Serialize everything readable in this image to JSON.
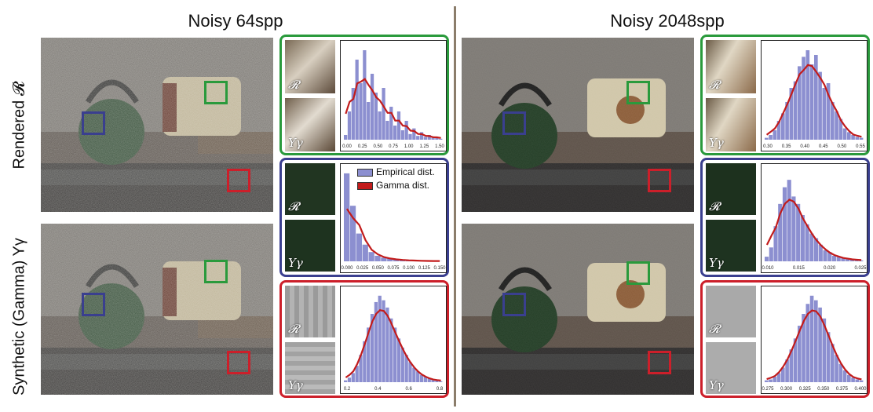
{
  "columns": [
    {
      "title": "Noisy 64spp"
    },
    {
      "title": "Noisy 2048spp"
    }
  ],
  "rows": [
    {
      "label": "Rendered 𝓡"
    },
    {
      "label": "Synthetic (Gamma) Yγ"
    }
  ],
  "symbols": {
    "rendered": "𝓡",
    "synthetic": "Yγ"
  },
  "legend": {
    "empirical": "Empirical dist.",
    "gamma": "Gamma dist."
  },
  "colors": {
    "green": "#2a9a3c",
    "blue": "#3a3f8f",
    "red": "#cc1f2a",
    "bar": "#8c8fd0",
    "curve": "#c21b1b"
  },
  "charts": [
    {
      "id": "c64-green",
      "ticks": [
        "0.00",
        "0.25",
        "0.50",
        "0.75",
        "1.00",
        "1.25",
        "1.50"
      ],
      "bars": [
        0.05,
        0.3,
        0.55,
        0.85,
        0.6,
        0.95,
        0.4,
        0.7,
        0.5,
        0.3,
        0.55,
        0.2,
        0.35,
        0.15,
        0.3,
        0.1,
        0.2,
        0.06,
        0.12,
        0.04,
        0.08,
        0.03,
        0.05,
        0.02,
        0.03,
        0.01
      ]
    },
    {
      "id": "c64-blue",
      "ticks": [
        "0.000",
        "0.025",
        "0.050",
        "0.075",
        "0.100",
        "0.125",
        "0.150"
      ],
      "bars": [
        0.95,
        0.6,
        0.3,
        0.18,
        0.1,
        0.06,
        0.04,
        0.03,
        0.02,
        0.015,
        0.01,
        0.01,
        0.005,
        0.005,
        0.003,
        0.002
      ]
    },
    {
      "id": "c64-red",
      "ticks": [
        "0.2",
        "0.4",
        "0.6",
        "0.8"
      ],
      "bars": [
        0.02,
        0.05,
        0.1,
        0.18,
        0.3,
        0.45,
        0.6,
        0.75,
        0.88,
        0.95,
        0.9,
        0.82,
        0.7,
        0.6,
        0.48,
        0.38,
        0.3,
        0.22,
        0.16,
        0.12,
        0.08,
        0.06,
        0.04,
        0.03,
        0.02,
        0.01
      ]
    },
    {
      "id": "c2048-green",
      "ticks": [
        "0.30",
        "0.35",
        "0.40",
        "0.45",
        "0.50",
        "0.55"
      ],
      "bars": [
        0.02,
        0.05,
        0.1,
        0.2,
        0.28,
        0.4,
        0.55,
        0.62,
        0.78,
        0.88,
        0.95,
        0.8,
        0.9,
        0.72,
        0.55,
        0.6,
        0.4,
        0.3,
        0.22,
        0.12,
        0.08,
        0.05,
        0.03,
        0.02
      ]
    },
    {
      "id": "c2048-blue",
      "ticks": [
        "0.010",
        "0.015",
        "0.020",
        "0.025"
      ],
      "bars": [
        0.05,
        0.15,
        0.38,
        0.62,
        0.8,
        0.88,
        0.7,
        0.62,
        0.5,
        0.4,
        0.3,
        0.25,
        0.18,
        0.12,
        0.1,
        0.06,
        0.05,
        0.04,
        0.03,
        0.02,
        0.015,
        0.01
      ]
    },
    {
      "id": "c2048-red",
      "ticks": [
        "0.275",
        "0.300",
        "0.325",
        "0.350",
        "0.375",
        "0.400"
      ],
      "bars": [
        0.02,
        0.03,
        0.06,
        0.1,
        0.16,
        0.25,
        0.36,
        0.48,
        0.62,
        0.75,
        0.86,
        0.95,
        0.9,
        0.82,
        0.7,
        0.55,
        0.42,
        0.3,
        0.2,
        0.13,
        0.08,
        0.05,
        0.03,
        0.02
      ]
    }
  ]
}
